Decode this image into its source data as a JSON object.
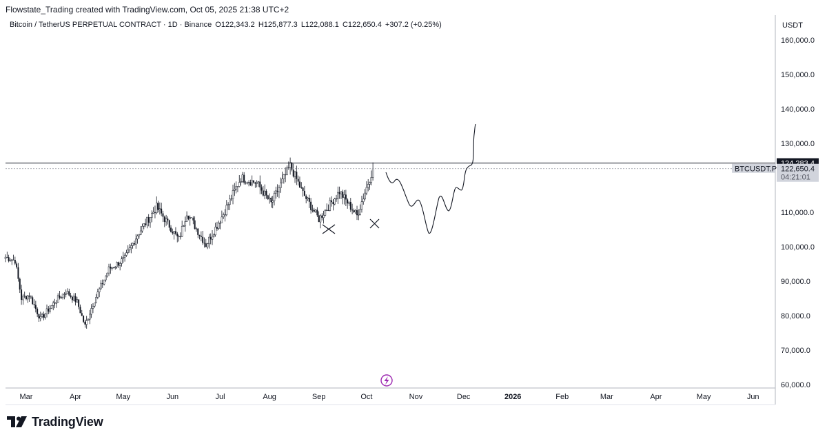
{
  "header": {
    "attribution": "Flowstate_Trading created with TradingView.com, Oct 05, 2025 21:38 UTC+2"
  },
  "symbol_info": {
    "name": "Bitcoin / TetherUS PERPETUAL CONTRACT · 1D · Binance",
    "open": "O122,343.2",
    "high": "H125,877.3",
    "low": "L122,088.1",
    "close": "C122,650.4",
    "change": "+307.2 (+0.25%)"
  },
  "price_axis": {
    "currency": "USDT",
    "tick_labels": [
      "160,000.0",
      "150,000.0",
      "140,000.0",
      "130,000.0",
      "110,000.0",
      "100,000.0",
      "90,000.0",
      "80,000.0",
      "70,000.0",
      "60,000.0"
    ]
  },
  "time_axis": {
    "labels": [
      "Mar",
      "Apr",
      "May",
      "Jun",
      "Jul",
      "Aug",
      "Sep",
      "Oct",
      "Nov",
      "Dec",
      "2026",
      "Feb",
      "Mar",
      "Apr",
      "May",
      "Jun"
    ]
  },
  "price_labels": {
    "line_level": "124,283.4",
    "symbol": "BTCUSDT.P",
    "last_price": "122,650.4",
    "countdown": "04:21:01"
  },
  "brand": {
    "name": "TradingView"
  },
  "colors": {
    "candle": "#131722",
    "axis_line": "#b2b5be",
    "lightning_badge": "#9c27b0",
    "line_label_bg": "#131722",
    "price_label_bg": "#d1d4dc"
  },
  "chart_data": {
    "type": "candlestick",
    "interval": "1D",
    "y_range": [
      60000,
      160000
    ],
    "x_range": [
      "2025-02-16",
      "2026-06-15"
    ],
    "series": [
      {
        "values_note": "",
        "closes_approx": [
          {
            "date": "2025-02-16",
            "close": 97000
          },
          {
            "date": "2025-02-22",
            "close": 96000
          },
          {
            "date": "2025-02-26",
            "close": 85000
          },
          {
            "date": "2025-03-03",
            "close": 86000
          },
          {
            "date": "2025-03-10",
            "close": 79000
          },
          {
            "date": "2025-03-20",
            "close": 84500
          },
          {
            "date": "2025-03-26",
            "close": 87000
          },
          {
            "date": "2025-04-02",
            "close": 84000
          },
          {
            "date": "2025-04-07",
            "close": 77000
          },
          {
            "date": "2025-04-12",
            "close": 83500
          },
          {
            "date": "2025-04-22",
            "close": 93500
          },
          {
            "date": "2025-05-02",
            "close": 96500
          },
          {
            "date": "2025-05-10",
            "close": 103500
          },
          {
            "date": "2025-05-22",
            "close": 111500
          },
          {
            "date": "2025-06-05",
            "close": 102000
          },
          {
            "date": "2025-06-10",
            "close": 110000
          },
          {
            "date": "2025-06-22",
            "close": 100500
          },
          {
            "date": "2025-07-03",
            "close": 109500
          },
          {
            "date": "2025-07-14",
            "close": 120000
          },
          {
            "date": "2025-07-24",
            "close": 118500
          },
          {
            "date": "2025-08-02",
            "close": 112500
          },
          {
            "date": "2025-08-14",
            "close": 123500
          },
          {
            "date": "2025-08-22",
            "close": 115500
          },
          {
            "date": "2025-09-01",
            "close": 108000
          },
          {
            "date": "2025-09-14",
            "close": 116000
          },
          {
            "date": "2025-09-25",
            "close": 109000
          },
          {
            "date": "2025-10-05",
            "close": 122650
          }
        ]
      }
    ],
    "horizontal_line": 124283.4,
    "grid": false
  }
}
